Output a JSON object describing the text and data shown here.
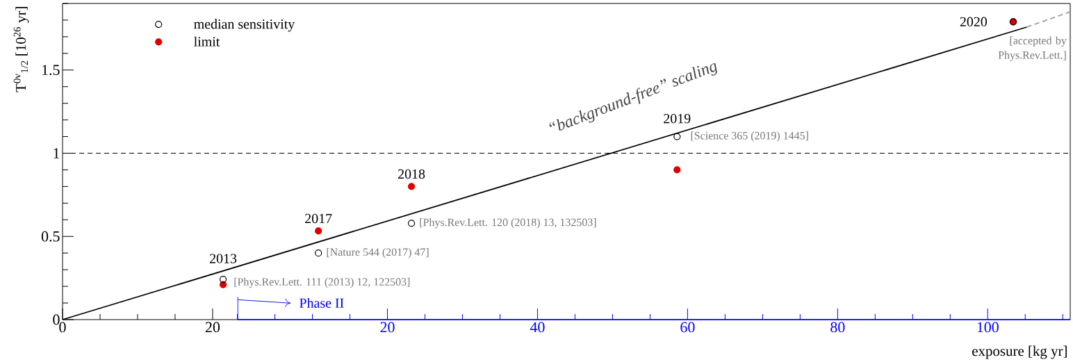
{
  "chart_data": {
    "type": "scatter",
    "xlabel": "exposure [kg yr]",
    "ylabel": "T$^{0ν}$$_{1/2}$ [10$^{26}$ yr]",
    "x": [
      21.4,
      34.1,
      46.5,
      81.9,
      126.7
    ],
    "series": [
      {
        "type": "line",
        "color": "#000000",
        "line_style": "solid",
        "marker": "none",
        "x": [
          0,
          128.5
        ],
        "values": [
          0,
          1.758
        ]
      },
      {
        "type": "line",
        "color": "#999999",
        "line_style": "dashed",
        "marker": "none",
        "x": [
          128.5,
          134.3
        ],
        "values": [
          1.758,
          1.85
        ]
      },
      {
        "name": "limit",
        "color": "#dd0000",
        "marker": "circle",
        "values": [
          0.21,
          0.533,
          0.8,
          0.9,
          1.79
        ]
      },
      {
        "name": "median sensitivity",
        "color": "#000000",
        "marker": "circle",
        "values": [
          0.242,
          0.4,
          0.579,
          1.1,
          1.79
        ]
      }
    ],
    "xlim": [
      0,
      134.3
    ],
    "ylim": [
      0,
      1.9
    ],
    "xticks": [
      0,
      20
    ],
    "yticks": [
      0,
      0.5,
      1,
      1.5
    ],
    "x2lim": [
      -23.3,
      111
    ],
    "x2ticks": [
      20,
      40,
      60,
      80,
      100
    ],
    "ref_lines": [
      {
        "axis": "y",
        "value": 1,
        "line_style": "dashed",
        "color": "#000000"
      }
    ],
    "legend": "top left",
    "annotations": [
      {
        "text": "2013",
        "x": 21.4,
        "y": 0.242
      },
      {
        "text": "2017",
        "x": 34.1,
        "y": 0.533
      },
      {
        "text": "2018",
        "x": 46.5,
        "y": 0.8
      },
      {
        "text": "2019",
        "x": 81.9,
        "y": 1.1
      },
      {
        "text": "2020",
        "x": 126.7,
        "y": 1.79
      },
      {
        "text": "[Phys.Rev.Lett. 111 (2013) 12, 122503]",
        "x": 21.4,
        "y": 0.242
      },
      {
        "text": "[Nature 544 (2017) 47]",
        "x": 34.1,
        "y": 0.4
      },
      {
        "text": "[Phys.Rev.Lett. 120 (2018) 13, 132503]",
        "x": 46.5,
        "y": 0.579
      },
      {
        "text": "[Science 365 (2019) 1445]",
        "x": 81.9,
        "y": 1.1
      },
      {
        "text": "[accepted by Phys.Rev.Lett.]",
        "x": 126.7,
        "y": 1.79
      },
      "“background-free” scaling",
      "Phase II"
    ]
  }
}
